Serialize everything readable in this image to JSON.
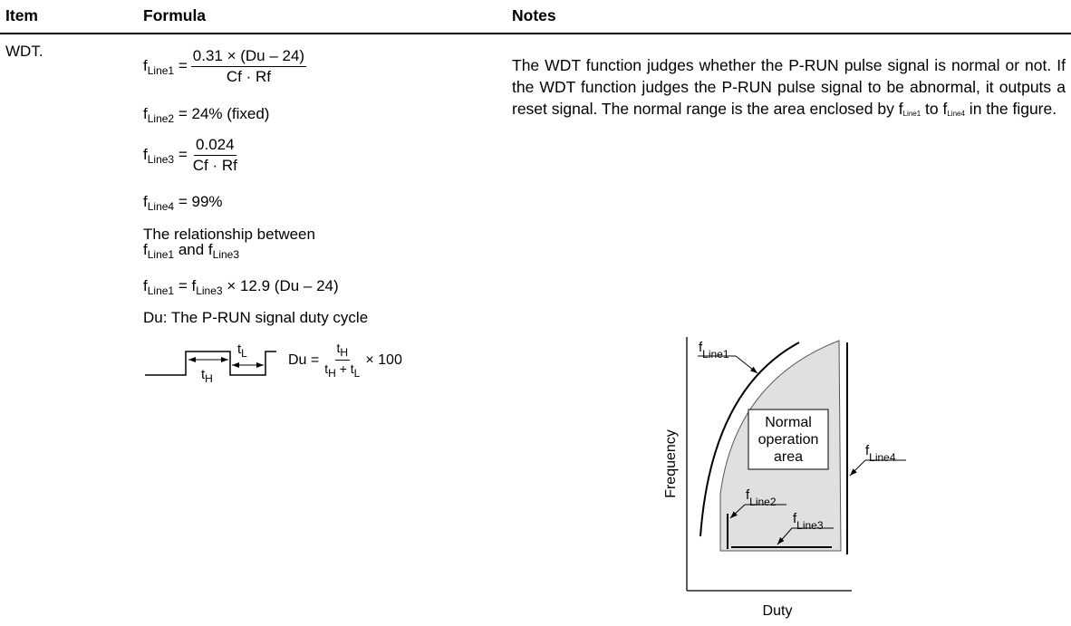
{
  "header": {
    "item": "Item",
    "formula": "Formula",
    "notes": "Notes"
  },
  "row": {
    "item": "WDT.",
    "f_line1": {
      "lhs": [
        "f",
        {
          "sub": "Line1"
        },
        " ="
      ],
      "num": "0.31 × (Du – 24)",
      "den": "Cf · Rf"
    },
    "f_line2": [
      "f",
      {
        "sub": "Line2"
      },
      " = 24% (fixed)"
    ],
    "f_line3": {
      "lhs": [
        "f",
        {
          "sub": "Line3"
        },
        " ="
      ],
      "num": "0.024",
      "den": "Cf · Rf"
    },
    "f_line4": [
      "f",
      {
        "sub": "Line4"
      },
      " = 99%"
    ],
    "relationship": {
      "line1": "The relationship between",
      "line2": [
        "f",
        {
          "sub": "Line1"
        },
        " and f",
        {
          "sub": "Line3"
        }
      ]
    },
    "relation_formula": [
      "f",
      {
        "sub": "Line1"
      },
      " = f",
      {
        "sub": "Line3"
      },
      " × 12.9 (Du – 24)"
    ],
    "du_definition": "Du: The P-RUN signal duty cycle",
    "waveform": {
      "t_high": [
        "t",
        {
          "sub": "H"
        }
      ],
      "t_low": [
        "t",
        {
          "sub": "L"
        }
      ]
    },
    "du_formula": {
      "lhs": "Du =",
      "num": [
        "t",
        {
          "sub": "H"
        }
      ],
      "den": [
        "t",
        {
          "sub": "H"
        },
        " + t",
        {
          "sub": "L"
        }
      ],
      "rhs": "× 100"
    },
    "notes": [
      "The WDT function judges whether the P-RUN pulse signal is normal or not. If the WDT function judges the P-RUN pulse signal to be abnormal, it outputs a reset signal. The normal range is the area enclosed by f",
      {
        "sub": "Line1"
      },
      " to f",
      {
        "sub": "Line4"
      },
      " in the figure."
    ],
    "figure": {
      "line1": [
        "f",
        {
          "sub": "Line1"
        }
      ],
      "line2": [
        "f",
        {
          "sub": "Line2"
        }
      ],
      "line3": [
        "f",
        {
          "sub": "Line3"
        }
      ],
      "line4": [
        "f",
        {
          "sub": "Line4"
        }
      ],
      "area": [
        "Normal",
        "operation",
        "area"
      ],
      "y_axis": "Frequency",
      "x_axis": "Duty"
    }
  }
}
